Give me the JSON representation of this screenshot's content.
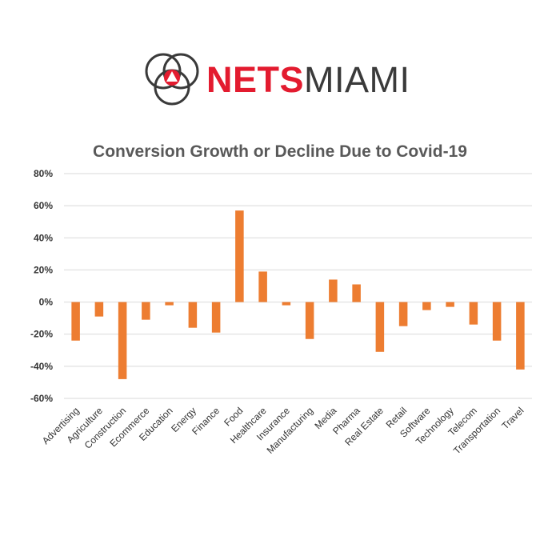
{
  "brand": {
    "name_part1": "NETS",
    "name_part2": "MIAMI",
    "colors": {
      "red": "#e31b2f",
      "gray": "#3a3a3a"
    },
    "icon": "netsmiami-logo-mark"
  },
  "chart_data": {
    "type": "bar",
    "title": "Conversion Growth or Decline Due to Covid-19",
    "xlabel": "",
    "ylabel": "",
    "ylim": [
      -60,
      80
    ],
    "yticks": [
      80,
      60,
      40,
      20,
      0,
      -20,
      -40,
      -60
    ],
    "ytick_labels": [
      "80%",
      "60%",
      "40%",
      "20%",
      "0%",
      "-20%",
      "-40%",
      "-60%"
    ],
    "grid": true,
    "bar_color": "#ed7d31",
    "categories": [
      "Advertising",
      "Agriculture",
      "Construction",
      "Ecommerce",
      "Education",
      "Energy",
      "Finance",
      "Food",
      "Healthcare",
      "Insurance",
      "Manufacturing",
      "Media",
      "Pharma",
      "Real Estate",
      "Retail",
      "Software",
      "Technology",
      "Telecom",
      "Transportation",
      "Travel"
    ],
    "values": [
      -24,
      -9,
      -48,
      -11,
      -2,
      -16,
      -19,
      57,
      19,
      -2,
      -23,
      14,
      11,
      -31,
      -15,
      -5,
      -3,
      -14,
      -24,
      -42
    ]
  }
}
